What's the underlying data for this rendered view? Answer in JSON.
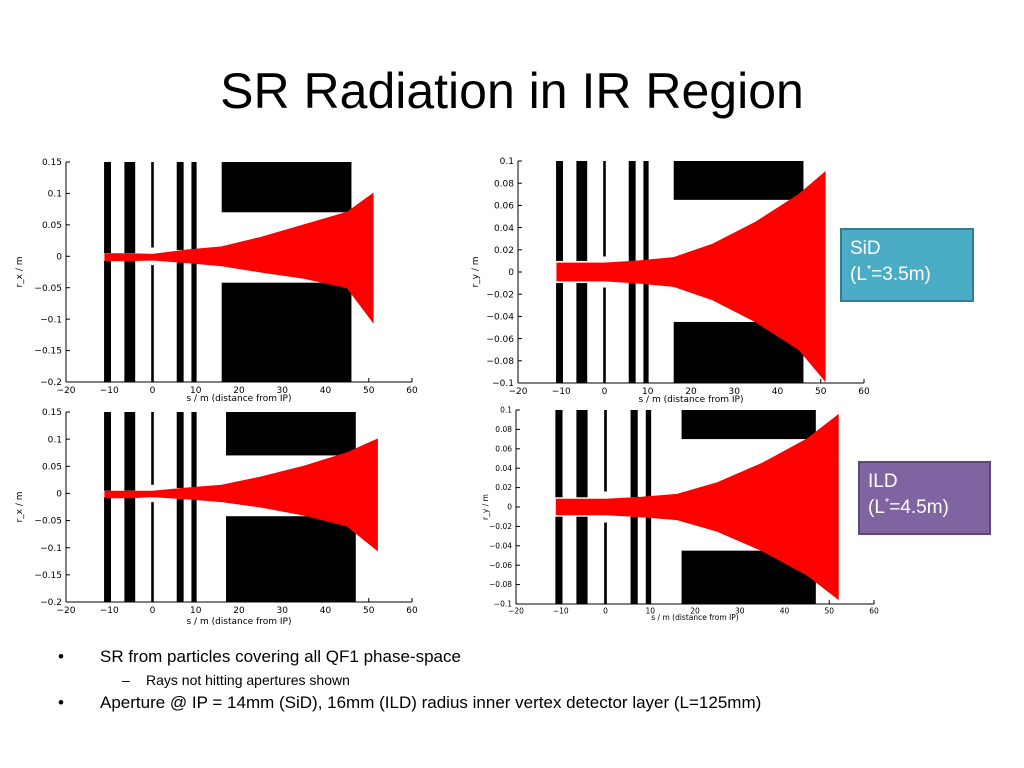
{
  "slide": {
    "title": "SR Radiation in IR Region"
  },
  "badges": {
    "sid": {
      "line1": "SiD",
      "line2_pre": "(L",
      "line2_sup": "*",
      "line2_post": "=3.5m)",
      "color": "#4bacc6"
    },
    "ild": {
      "line1": "ILD",
      "line2_pre": "(L",
      "line2_sup": "*",
      "line2_post": "=4.5m)",
      "color": "#8064a2"
    }
  },
  "bullets": [
    {
      "marker": "•",
      "text": "SR from particles covering all QF1 phase-space"
    },
    {
      "marker": "–",
      "text": "Rays not hitting apertures shown",
      "level": 2
    },
    {
      "marker": "•",
      "text": "Aperture @ IP = 14mm (SiD), 16mm (ILD) radius inner vertex detector layer (L=125mm)"
    }
  ],
  "chart_data": [
    {
      "type": "area",
      "id": "sid-x",
      "xlabel": "s / m (distance from IP)",
      "ylabel": "r_x / m",
      "xlim": [
        -20,
        60
      ],
      "ylim": [
        -0.2,
        0.15
      ],
      "xticks": [
        "−20",
        "−10",
        "0",
        "10",
        "20",
        "30",
        "40",
        "50",
        "60"
      ],
      "yticks": [
        "0.15",
        "0.1",
        "0.05",
        "0",
        "−0.05",
        "−0.1",
        "−0.15",
        "−0.2"
      ],
      "fan": {
        "color": "#ff0000",
        "s": [
          -11,
          -5,
          0,
          8,
          16,
          25,
          35,
          45,
          51
        ],
        "upper": [
          0.004,
          0.004,
          0.003,
          0.01,
          0.015,
          0.03,
          0.05,
          0.07,
          0.1
        ],
        "lower": [
          -0.007,
          -0.007,
          -0.006,
          -0.01,
          -0.015,
          -0.025,
          -0.035,
          -0.05,
          -0.105
        ]
      },
      "apertures": {
        "color": "#000000",
        "elements": [
          {
            "s0": -11.2,
            "s1": -9.6,
            "top": 0.15,
            "bot": -0.2,
            "inner_top": 0.005,
            "inner_bot": -0.007
          },
          {
            "s0": -6.5,
            "s1": -4.0,
            "top": 0.15,
            "bot": -0.2,
            "inner_top": 0.005,
            "inner_bot": -0.007
          },
          {
            "s0": -0.3,
            "s1": 0.3,
            "top": 0.15,
            "bot": -0.2,
            "inner_top": 0.014,
            "inner_bot": -0.014
          },
          {
            "s0": 5.6,
            "s1": 7.2,
            "top": 0.15,
            "bot": -0.2,
            "inner_top": 0.01,
            "inner_bot": -0.01
          },
          {
            "s0": 9.0,
            "s1": 10.2,
            "top": 0.15,
            "bot": -0.2,
            "inner_top": 0.01,
            "inner_bot": -0.01
          },
          {
            "s0": 16.0,
            "s1": 46.0,
            "top": 0.15,
            "bot": -0.2,
            "inner_top": 0.07,
            "inner_bot": -0.042
          }
        ]
      }
    },
    {
      "type": "area",
      "id": "sid-y",
      "xlabel": "s / m (distance from IP)",
      "ylabel": "r_y / m",
      "xlim": [
        -20,
        60
      ],
      "ylim": [
        -0.1,
        0.1
      ],
      "xticks": [
        "−20",
        "−10",
        "0",
        "10",
        "20",
        "30",
        "40",
        "50",
        "60"
      ],
      "yticks": [
        "0.1",
        "0.08",
        "0.06",
        "0.04",
        "0.02",
        "0",
        "−0.02",
        "−0.04",
        "−0.06",
        "−0.08",
        "−0.1"
      ],
      "fan": {
        "color": "#ff0000",
        "s": [
          -11,
          -5,
          0,
          8,
          16,
          25,
          35,
          45,
          51
        ],
        "upper": [
          0.008,
          0.008,
          0.008,
          0.01,
          0.013,
          0.025,
          0.045,
          0.07,
          0.09
        ],
        "lower": [
          -0.008,
          -0.008,
          -0.008,
          -0.01,
          -0.013,
          -0.025,
          -0.045,
          -0.07,
          -0.098
        ]
      },
      "apertures": {
        "color": "#000000",
        "elements": [
          {
            "s0": -11.2,
            "s1": -9.6,
            "top": 0.1,
            "bot": -0.1,
            "inner_top": 0.01,
            "inner_bot": -0.01
          },
          {
            "s0": -6.5,
            "s1": -4.0,
            "top": 0.1,
            "bot": -0.1,
            "inner_top": 0.01,
            "inner_bot": -0.01
          },
          {
            "s0": -0.3,
            "s1": 0.3,
            "top": 0.1,
            "bot": -0.1,
            "inner_top": 0.014,
            "inner_bot": -0.014
          },
          {
            "s0": 5.6,
            "s1": 7.2,
            "top": 0.1,
            "bot": -0.1,
            "inner_top": 0.01,
            "inner_bot": -0.01
          },
          {
            "s0": 9.0,
            "s1": 10.2,
            "top": 0.1,
            "bot": -0.1,
            "inner_top": 0.01,
            "inner_bot": -0.01
          },
          {
            "s0": 16.0,
            "s1": 46.0,
            "top": 0.1,
            "bot": -0.1,
            "inner_top": 0.065,
            "inner_bot": -0.045
          }
        ]
      }
    },
    {
      "type": "area",
      "id": "ild-x",
      "xlabel": "s / m (distance from IP)",
      "ylabel": "r_x / m",
      "xlim": [
        -20,
        60
      ],
      "ylim": [
        -0.2,
        0.15
      ],
      "xticks": [
        "−20",
        "−10",
        "0",
        "10",
        "20",
        "30",
        "40",
        "50",
        "60"
      ],
      "yticks": [
        "0.15",
        "0.1",
        "0.05",
        "0",
        "−0.05",
        "−0.1",
        "−0.15",
        "−0.2"
      ],
      "fan": {
        "color": "#ff0000",
        "s": [
          -11,
          -5,
          0,
          8,
          16,
          25,
          35,
          45,
          52
        ],
        "upper": [
          0.004,
          0.004,
          0.004,
          0.01,
          0.015,
          0.03,
          0.05,
          0.075,
          0.1
        ],
        "lower": [
          -0.008,
          -0.008,
          -0.006,
          -0.01,
          -0.015,
          -0.025,
          -0.04,
          -0.06,
          -0.105
        ]
      },
      "apertures": {
        "color": "#000000",
        "elements": [
          {
            "s0": -11.2,
            "s1": -9.6,
            "top": 0.15,
            "bot": -0.2,
            "inner_top": 0.005,
            "inner_bot": -0.007
          },
          {
            "s0": -6.5,
            "s1": -4.0,
            "top": 0.15,
            "bot": -0.2,
            "inner_top": 0.005,
            "inner_bot": -0.007
          },
          {
            "s0": -0.3,
            "s1": 0.3,
            "top": 0.15,
            "bot": -0.2,
            "inner_top": 0.016,
            "inner_bot": -0.016
          },
          {
            "s0": 5.6,
            "s1": 7.2,
            "top": 0.15,
            "bot": -0.2,
            "inner_top": 0.01,
            "inner_bot": -0.01
          },
          {
            "s0": 9.0,
            "s1": 10.2,
            "top": 0.15,
            "bot": -0.2,
            "inner_top": 0.01,
            "inner_bot": -0.01
          },
          {
            "s0": 17.0,
            "s1": 47.0,
            "top": 0.15,
            "bot": -0.2,
            "inner_top": 0.07,
            "inner_bot": -0.042
          }
        ]
      }
    },
    {
      "type": "area",
      "id": "ild-y",
      "xlabel": "s / m (distance from IP)",
      "ylabel": "r_y / m",
      "xlim": [
        -20,
        60
      ],
      "ylim": [
        -0.1,
        0.1
      ],
      "xticks": [
        "−20",
        "−10",
        "0",
        "10",
        "20",
        "30",
        "40",
        "50",
        "60"
      ],
      "yticks": [
        "0.1",
        "0.08",
        "0.06",
        "0.04",
        "0.02",
        "0",
        "−0.02",
        "−0.04",
        "−0.06",
        "−0.08",
        "−0.1"
      ],
      "fan": {
        "color": "#ff0000",
        "s": [
          -11,
          -5,
          0,
          8,
          16,
          25,
          35,
          45,
          52
        ],
        "upper": [
          0.008,
          0.008,
          0.008,
          0.01,
          0.013,
          0.025,
          0.045,
          0.07,
          0.095
        ],
        "lower": [
          -0.008,
          -0.008,
          -0.008,
          -0.01,
          -0.013,
          -0.025,
          -0.045,
          -0.07,
          -0.095
        ]
      },
      "apertures": {
        "color": "#000000",
        "elements": [
          {
            "s0": -11.2,
            "s1": -9.6,
            "top": 0.1,
            "bot": -0.1,
            "inner_top": 0.01,
            "inner_bot": -0.01
          },
          {
            "s0": -6.5,
            "s1": -4.0,
            "top": 0.1,
            "bot": -0.1,
            "inner_top": 0.01,
            "inner_bot": -0.01
          },
          {
            "s0": -0.3,
            "s1": 0.3,
            "top": 0.1,
            "bot": -0.1,
            "inner_top": 0.016,
            "inner_bot": -0.016
          },
          {
            "s0": 5.6,
            "s1": 7.2,
            "top": 0.1,
            "bot": -0.1,
            "inner_top": 0.01,
            "inner_bot": -0.01
          },
          {
            "s0": 9.0,
            "s1": 10.2,
            "top": 0.1,
            "bot": -0.1,
            "inner_top": 0.01,
            "inner_bot": -0.01
          },
          {
            "s0": 17.0,
            "s1": 47.0,
            "top": 0.1,
            "bot": -0.1,
            "inner_top": 0.07,
            "inner_bot": -0.045
          }
        ]
      }
    }
  ]
}
